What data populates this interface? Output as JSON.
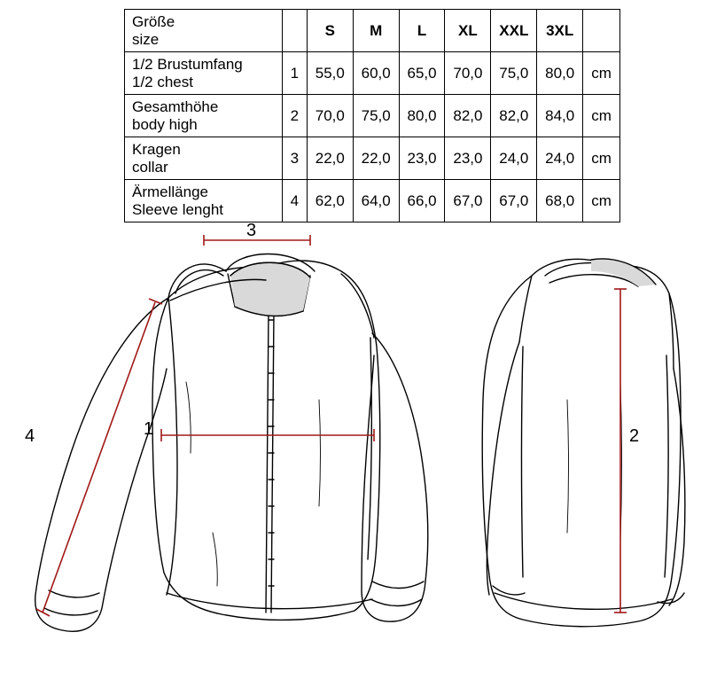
{
  "table": {
    "header": {
      "label_de": "Größe",
      "label_en": "size",
      "sizes": [
        "S",
        "M",
        "L",
        "XL",
        "XXL",
        "3XL"
      ]
    },
    "rows": [
      {
        "label_de": "1/2 Brustumfang",
        "label_en": "1/2 chest",
        "num": "1",
        "values": [
          "55,0",
          "60,0",
          "65,0",
          "70,0",
          "75,0",
          "80,0"
        ],
        "unit": "cm"
      },
      {
        "label_de": "Gesamthöhe",
        "label_en": "body high",
        "num": "2",
        "values": [
          "70,0",
          "75,0",
          "80,0",
          "82,0",
          "82,0",
          "84,0"
        ],
        "unit": "cm"
      },
      {
        "label_de": "Kragen",
        "label_en": "collar",
        "num": "3",
        "values": [
          "22,0",
          "22,0",
          "23,0",
          "23,0",
          "24,0",
          "24,0"
        ],
        "unit": "cm"
      },
      {
        "label_de": "Ärmellänge",
        "label_en": "Sleeve lenght",
        "num": "4",
        "values": [
          "62,0",
          "64,0",
          "66,0",
          "67,0",
          "67,0",
          "68,0"
        ],
        "unit": "cm"
      }
    ]
  },
  "diagram": {
    "line_color": "#a01818",
    "line_width": 1.6,
    "outline_color": "#000000",
    "outline_width": 1.4,
    "shade_color": "#d9d9d9",
    "labels": {
      "1": "1",
      "2": "2",
      "3": "3",
      "4": "4"
    }
  }
}
